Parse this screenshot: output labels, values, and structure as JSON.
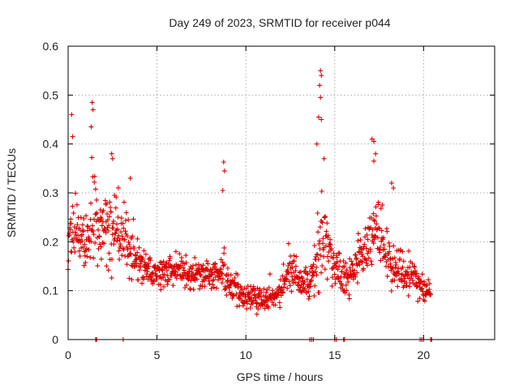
{
  "chart_data": {
    "type": "scatter",
    "title": "Day 249 of 2023, SRMTID for receiver p044",
    "xlabel": "GPS time / hours",
    "ylabel": "SRMTID / TECUs",
    "xlim": [
      0,
      24
    ],
    "ylim": [
      0,
      0.6
    ],
    "xticks": [
      "0",
      "5",
      "10",
      "15",
      "20"
    ],
    "xtick_values": [
      0,
      5,
      10,
      15,
      20
    ],
    "yticks": [
      "0",
      "0.1",
      "0.2",
      "0.3",
      "0.4",
      "0.5",
      "0.6"
    ],
    "ytick_values": [
      0,
      0.1,
      0.2,
      0.3,
      0.4,
      0.5,
      0.6
    ],
    "grid": true,
    "marker": "+",
    "series": [
      {
        "name": "SRMTID",
        "color": "#dd0000",
        "profile_hours": [
          0.0,
          0.3,
          0.6,
          1.0,
          1.5,
          2.0,
          2.5,
          3.0,
          3.5,
          4.0,
          4.5,
          5.0,
          6.0,
          7.0,
          8.0,
          8.8,
          9.5,
          10.0,
          10.5,
          11.0,
          11.5,
          12.0,
          12.5,
          13.0,
          13.5,
          14.0,
          14.3,
          14.6,
          15.0,
          15.5,
          16.0,
          16.5,
          17.0,
          17.5,
          18.0,
          18.5,
          19.0,
          19.5,
          20.0,
          20.4
        ],
        "profile_median": [
          0.19,
          0.22,
          0.2,
          0.21,
          0.24,
          0.23,
          0.22,
          0.21,
          0.19,
          0.16,
          0.14,
          0.13,
          0.14,
          0.13,
          0.13,
          0.14,
          0.1,
          0.08,
          0.09,
          0.08,
          0.08,
          0.1,
          0.14,
          0.12,
          0.11,
          0.15,
          0.22,
          0.18,
          0.14,
          0.13,
          0.14,
          0.17,
          0.2,
          0.22,
          0.17,
          0.14,
          0.13,
          0.14,
          0.09,
          0.1
        ],
        "profile_spread": [
          0.06,
          0.08,
          0.06,
          0.07,
          0.08,
          0.07,
          0.07,
          0.06,
          0.06,
          0.04,
          0.03,
          0.03,
          0.03,
          0.03,
          0.03,
          0.04,
          0.03,
          0.02,
          0.03,
          0.02,
          0.02,
          0.03,
          0.04,
          0.03,
          0.03,
          0.05,
          0.08,
          0.05,
          0.04,
          0.04,
          0.04,
          0.05,
          0.06,
          0.06,
          0.05,
          0.04,
          0.03,
          0.04,
          0.02,
          0.02
        ],
        "peaks": [
          {
            "x": 0.2,
            "y": 0.46
          },
          {
            "x": 0.25,
            "y": 0.415
          },
          {
            "x": 1.35,
            "y": 0.485
          },
          {
            "x": 1.4,
            "y": 0.47
          },
          {
            "x": 1.3,
            "y": 0.435
          },
          {
            "x": 2.45,
            "y": 0.38
          },
          {
            "x": 2.5,
            "y": 0.37
          },
          {
            "x": 3.5,
            "y": 0.33
          },
          {
            "x": 8.75,
            "y": 0.363
          },
          {
            "x": 8.8,
            "y": 0.345
          },
          {
            "x": 8.7,
            "y": 0.305
          },
          {
            "x": 14.2,
            "y": 0.55
          },
          {
            "x": 14.25,
            "y": 0.54
          },
          {
            "x": 14.15,
            "y": 0.52
          },
          {
            "x": 14.2,
            "y": 0.495
          },
          {
            "x": 14.1,
            "y": 0.455
          },
          {
            "x": 14.25,
            "y": 0.45
          },
          {
            "x": 14.0,
            "y": 0.4
          },
          {
            "x": 14.4,
            "y": 0.37
          },
          {
            "x": 17.1,
            "y": 0.41
          },
          {
            "x": 17.2,
            "y": 0.405
          },
          {
            "x": 17.3,
            "y": 0.38
          },
          {
            "x": 17.2,
            "y": 0.365
          },
          {
            "x": 18.2,
            "y": 0.32
          },
          {
            "x": 18.3,
            "y": 0.31
          }
        ],
        "zero_hours": [
          1.55,
          1.6,
          3.1,
          13.6,
          13.7,
          13.8,
          15.0,
          15.1,
          15.5,
          15.55,
          19.8,
          19.9,
          20.0,
          20.4,
          20.45
        ]
      }
    ]
  }
}
